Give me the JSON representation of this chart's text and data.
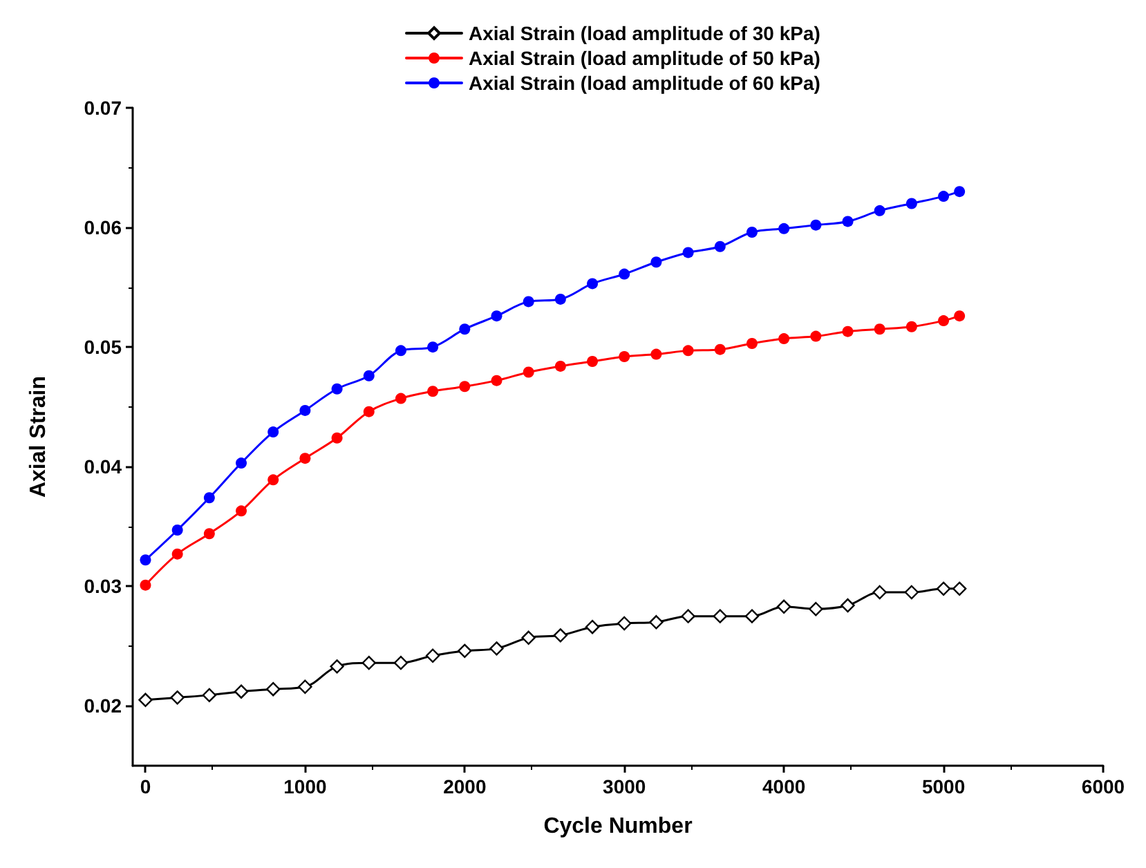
{
  "chart_data": {
    "type": "line",
    "xlabel": "Cycle Number",
    "ylabel": "Axial Strain",
    "x": [
      0,
      200,
      400,
      600,
      800,
      1000,
      1200,
      1400,
      1600,
      1800,
      2000,
      2200,
      2400,
      2600,
      2800,
      3000,
      3200,
      3400,
      3600,
      3800,
      4000,
      4200,
      4400,
      4600,
      4800,
      5000,
      5100
    ],
    "series": [
      {
        "name": "Axial Strain (load amplitude of 30 kPa)",
        "color": "#000000",
        "marker": "diamond",
        "values": [
          0.0205,
          0.0207,
          0.0209,
          0.0212,
          0.0214,
          0.0216,
          0.0233,
          0.0236,
          0.0236,
          0.0242,
          0.0246,
          0.0248,
          0.0257,
          0.0259,
          0.0266,
          0.0269,
          0.027,
          0.0275,
          0.0275,
          0.0275,
          0.0283,
          0.0281,
          0.0284,
          0.0295,
          0.0295,
          0.0298,
          0.0298
        ]
      },
      {
        "name": "Axial Strain (load amplitude of 50 kPa)",
        "color": "#ff0000",
        "marker": "circle",
        "values": [
          0.0301,
          0.0327,
          0.0344,
          0.0363,
          0.0389,
          0.0407,
          0.0424,
          0.0446,
          0.0457,
          0.0463,
          0.0467,
          0.0472,
          0.0479,
          0.0484,
          0.0488,
          0.0492,
          0.0494,
          0.0497,
          0.0498,
          0.0503,
          0.0507,
          0.0509,
          0.0513,
          0.0515,
          0.0517,
          0.0522,
          0.0526
        ]
      },
      {
        "name": "Axial Strain (load amplitude of 60 kPa)",
        "color": "#0000ff",
        "marker": "circle",
        "values": [
          0.0322,
          0.0347,
          0.0374,
          0.0403,
          0.0429,
          0.0447,
          0.0465,
          0.0476,
          0.0497,
          0.05,
          0.0515,
          0.0526,
          0.0538,
          0.054,
          0.0553,
          0.0561,
          0.0571,
          0.0579,
          0.0584,
          0.0596,
          0.0599,
          0.0602,
          0.0605,
          0.0614,
          0.062,
          0.0626,
          0.063
        ]
      }
    ],
    "xlim": [
      -80,
      6000
    ],
    "xticks": [
      0,
      1000,
      2000,
      3000,
      4000,
      5000,
      6000
    ],
    "ylim": [
      0.015,
      0.07
    ],
    "yticks": [
      0.02,
      0.03,
      0.04,
      0.05,
      0.06,
      0.07
    ],
    "grid": false,
    "legend": "top",
    "line_style": "solid"
  }
}
